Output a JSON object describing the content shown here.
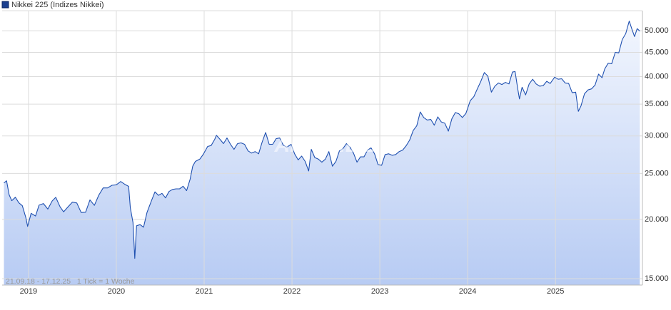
{
  "chart_data": {
    "type": "line",
    "watermark": "ARIVA.DE",
    "footnote": "21.09.18 - 17.12.25   1 Tick = 1 Woche",
    "log_scale": true,
    "grid": true,
    "xlim": [
      2018.7,
      2025.99
    ],
    "xticks": [
      2019,
      2020,
      2021,
      2022,
      2023,
      2024,
      2025
    ],
    "ylim": [
      14540,
      55100
    ],
    "yticks": [
      {
        "value": 15000,
        "label": "15.000"
      },
      {
        "value": 20000,
        "label": "20.000"
      },
      {
        "value": 25000,
        "label": "25.000"
      },
      {
        "value": 30000,
        "label": "30.000"
      },
      {
        "value": 35000,
        "label": "35.000"
      },
      {
        "value": 40000,
        "label": "40.000"
      },
      {
        "value": 45000,
        "label": "45.000"
      },
      {
        "value": 50000,
        "label": "50.000"
      }
    ],
    "x": [
      2018.72,
      2018.75,
      2018.78,
      2018.81,
      2018.85,
      2018.89,
      2018.93,
      2018.97,
      2018.99,
      2019.03,
      2019.08,
      2019.12,
      2019.17,
      2019.22,
      2019.27,
      2019.31,
      2019.36,
      2019.4,
      2019.45,
      2019.5,
      2019.55,
      2019.6,
      2019.65,
      2019.7,
      2019.75,
      2019.8,
      2019.85,
      2019.9,
      2019.95,
      2020.0,
      2020.05,
      2020.1,
      2020.14,
      2020.16,
      2020.19,
      2020.21,
      2020.23,
      2020.27,
      2020.31,
      2020.35,
      2020.4,
      2020.44,
      2020.48,
      2020.52,
      2020.56,
      2020.6,
      2020.64,
      2020.68,
      2020.72,
      2020.76,
      2020.8,
      2020.84,
      2020.87,
      2020.9,
      2020.95,
      2020.99,
      2021.04,
      2021.08,
      2021.12,
      2021.14,
      2021.18,
      2021.22,
      2021.26,
      2021.3,
      2021.34,
      2021.38,
      2021.42,
      2021.46,
      2021.5,
      2021.54,
      2021.58,
      2021.62,
      2021.66,
      2021.7,
      2021.74,
      2021.78,
      2021.82,
      2021.86,
      2021.9,
      2021.94,
      2021.99,
      2022.03,
      2022.07,
      2022.11,
      2022.15,
      2022.19,
      2022.22,
      2022.26,
      2022.3,
      2022.34,
      2022.38,
      2022.42,
      2022.46,
      2022.5,
      2022.54,
      2022.58,
      2022.62,
      2022.66,
      2022.7,
      2022.74,
      2022.78,
      2022.82,
      2022.86,
      2022.9,
      2022.94,
      2022.98,
      2023.02,
      2023.06,
      2023.1,
      2023.14,
      2023.18,
      2023.22,
      2023.26,
      2023.3,
      2023.34,
      2023.38,
      2023.42,
      2023.46,
      2023.5,
      2023.54,
      2023.58,
      2023.62,
      2023.66,
      2023.7,
      2023.74,
      2023.78,
      2023.82,
      2023.86,
      2023.9,
      2023.94,
      2023.98,
      2024.03,
      2024.07,
      2024.11,
      2024.15,
      2024.19,
      2024.23,
      2024.27,
      2024.31,
      2024.35,
      2024.39,
      2024.43,
      2024.47,
      2024.51,
      2024.54,
      2024.57,
      2024.59,
      2024.62,
      2024.66,
      2024.7,
      2024.74,
      2024.78,
      2024.82,
      2024.86,
      2024.9,
      2024.94,
      2024.99,
      2025.03,
      2025.07,
      2025.11,
      2025.15,
      2025.19,
      2025.23,
      2025.26,
      2025.29,
      2025.33,
      2025.37,
      2025.41,
      2025.45,
      2025.49,
      2025.53,
      2025.56,
      2025.6,
      2025.64,
      2025.68,
      2025.72,
      2025.76,
      2025.8,
      2025.84,
      2025.87,
      2025.9,
      2025.93,
      2025.96
    ],
    "series": [
      {
        "name": "Nikkei 225 (Indizes Nikkei)",
        "color": "#1f50b0",
        "values": [
          23870,
          24120,
          22530,
          21900,
          22270,
          21680,
          21370,
          20170,
          19330,
          20600,
          20330,
          21430,
          21600,
          21030,
          21870,
          22260,
          21250,
          20750,
          21260,
          21750,
          21660,
          20680,
          20710,
          21990,
          21410,
          22490,
          23300,
          23300,
          23600,
          23660,
          24040,
          23690,
          23480,
          21140,
          19700,
          16550,
          19390,
          19500,
          19260,
          20700,
          21900,
          22860,
          22480,
          22700,
          22200,
          22900,
          23130,
          23200,
          23200,
          23500,
          23000,
          24300,
          25900,
          26500,
          26800,
          27440,
          28500,
          28630,
          29500,
          30080,
          29500,
          28900,
          29700,
          28800,
          28100,
          28900,
          29000,
          28800,
          27900,
          27600,
          27800,
          27500,
          29100,
          30500,
          28800,
          28800,
          29600,
          29700,
          28700,
          28400,
          28790,
          27500,
          26700,
          27200,
          26500,
          25300,
          28100,
          27000,
          26800,
          26400,
          26800,
          27800,
          25900,
          26500,
          27900,
          28200,
          28900,
          28400,
          27600,
          26400,
          27100,
          27100,
          28000,
          28300,
          27500,
          26100,
          26000,
          27400,
          27500,
          27300,
          27400,
          27800,
          28000,
          28600,
          29400,
          30800,
          31500,
          33700,
          32800,
          32400,
          32500,
          31600,
          32900,
          32100,
          31900,
          30700,
          32600,
          33600,
          33400,
          32800,
          33460,
          35600,
          36300,
          37700,
          39100,
          40800,
          40100,
          37100,
          38200,
          38800,
          38500,
          38900,
          38600,
          40900,
          41000,
          37700,
          35900,
          38000,
          36600,
          38600,
          39500,
          38600,
          38200,
          38300,
          39100,
          38700,
          39900,
          39500,
          39600,
          38800,
          38700,
          37000,
          37100,
          33800,
          34700,
          36800,
          37500,
          37700,
          38400,
          40500,
          39800,
          41500,
          42700,
          42600,
          45000,
          44900,
          47900,
          49300,
          52400,
          50400,
          48600,
          50500,
          49900
        ]
      }
    ]
  }
}
